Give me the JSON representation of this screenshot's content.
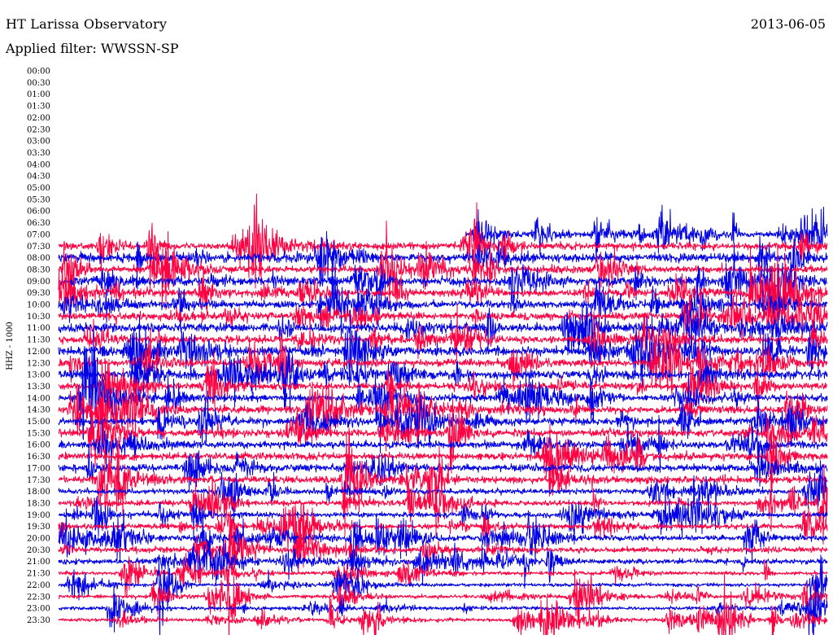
{
  "header": {
    "title": "HT Larissa Observatory",
    "date": "2013-06-05",
    "filter": "Applied filter: WWSSN-SP"
  },
  "chart_data": {
    "type": "line",
    "subtype": "helicorder",
    "ylabel": "HHZ - 1000",
    "tick_labels": [
      "00:00",
      "00:30",
      "01:00",
      "01:30",
      "02:00",
      "02:30",
      "03:00",
      "03:30",
      "04:00",
      "04:30",
      "05:00",
      "05:30",
      "06:00",
      "06:30",
      "07:00",
      "07:30",
      "08:00",
      "08:30",
      "09:00",
      "09:30",
      "10:00",
      "10:30",
      "11:00",
      "11:30",
      "12:00",
      "12:30",
      "13:00",
      "13:30",
      "14:00",
      "14:30",
      "15:00",
      "15:30",
      "16:00",
      "16:30",
      "17:00",
      "17:30",
      "18:00",
      "18:30",
      "19:00",
      "19:30",
      "20:00",
      "20:30",
      "21:00",
      "21:30",
      "22:00",
      "22:30",
      "23:00",
      "23:30"
    ],
    "first_trace_index": 14,
    "first_trace_start_fraction": 0.53,
    "colors": {
      "even_rows": "#0000e6",
      "odd_rows": "#ff0040"
    },
    "noise_levels": [
      0,
      0,
      0,
      0,
      0,
      0,
      0,
      0,
      0,
      0,
      0,
      0,
      0,
      0,
      3,
      4,
      5,
      4,
      5,
      4,
      4,
      4,
      5,
      4,
      5,
      4,
      5,
      4,
      4,
      4,
      4,
      4,
      4,
      4,
      4,
      4,
      3,
      3,
      3,
      3,
      3,
      3,
      3,
      2,
      2,
      2,
      2,
      2
    ]
  }
}
